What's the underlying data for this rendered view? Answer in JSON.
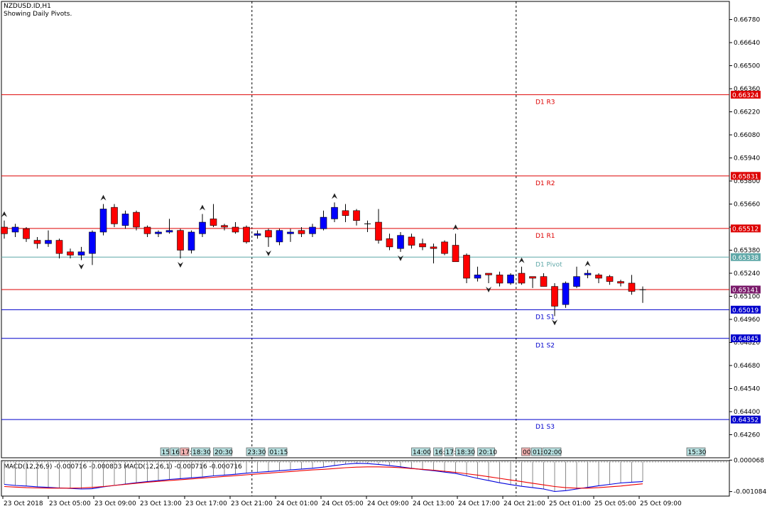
{
  "header": {
    "symbol": "NZDUSD.ID,H1",
    "subtitle": "Showing Daily Pivots."
  },
  "colors": {
    "bull": "#0000ff",
    "bear": "#ff0000",
    "resistance": "#dd0000",
    "support": "#0000cc",
    "pivot": "#5fa8a8",
    "macd_signal": "#ee0000",
    "macd_main": "#0000dd",
    "histogram": "#888888",
    "session_box": "#b7e0e0",
    "session_box_red": "#f4b3b3",
    "current_price": "#7a1a6a"
  },
  "chart_data": [
    {
      "type": "candlestick",
      "ylim": [
        0.6412,
        0.6689
      ],
      "y_ticks": [
        "0.66780",
        "0.66640",
        "0.66500",
        "0.66360",
        "0.66220",
        "0.66080",
        "0.65940",
        "0.65800",
        "0.65660",
        "0.65520",
        "0.65380",
        "0.65240",
        "0.65100",
        "0.64960",
        "0.64820",
        "0.64680",
        "0.64540",
        "0.64400",
        "0.64260"
      ],
      "x_labels": [
        "23 Oct 2018",
        "23 Oct 05:00",
        "23 Oct 09:00",
        "23 Oct 13:00",
        "23 Oct 17:00",
        "23 Oct 21:00",
        "24 Oct 01:00",
        "24 Oct 05:00",
        "24 Oct 09:00",
        "24 Oct 13:00",
        "24 Oct 17:00",
        "24 Oct 21:00",
        "25 Oct 01:00",
        "25 Oct 05:00",
        "25 Oct 09:00"
      ],
      "candles": [
        [
          0.6552,
          0.6548,
          0.6556,
          0.6545
        ],
        [
          0.6549,
          0.6552,
          0.6554,
          0.6546
        ],
        [
          0.6551,
          0.6545,
          0.6552,
          0.6543
        ],
        [
          0.6544,
          0.6542,
          0.6546,
          0.6539
        ],
        [
          0.6542,
          0.6544,
          0.655,
          0.654
        ],
        [
          0.6544,
          0.6536,
          0.6545,
          0.6533
        ],
        [
          0.6537,
          0.6535,
          0.6539,
          0.6533
        ],
        [
          0.6535,
          0.6537,
          0.654,
          0.6532
        ],
        [
          0.6536,
          0.6549,
          0.655,
          0.6529
        ],
        [
          0.6549,
          0.6563,
          0.6566,
          0.6547
        ],
        [
          0.6564,
          0.6554,
          0.6566,
          0.6552
        ],
        [
          0.6553,
          0.656,
          0.6562,
          0.6551
        ],
        [
          0.6561,
          0.6552,
          0.6562,
          0.655
        ],
        [
          0.6552,
          0.6548,
          0.6553,
          0.6546
        ],
        [
          0.6548,
          0.6549,
          0.655,
          0.6546
        ],
        [
          0.6549,
          0.655,
          0.6557,
          0.6548
        ],
        [
          0.655,
          0.6538,
          0.6551,
          0.6533
        ],
        [
          0.6538,
          0.6549,
          0.655,
          0.6536
        ],
        [
          0.6548,
          0.6555,
          0.656,
          0.6546
        ],
        [
          0.6557,
          0.6553,
          0.6566,
          0.6552
        ],
        [
          0.6553,
          0.6552,
          0.6554,
          0.655
        ],
        [
          0.6552,
          0.6549,
          0.6555,
          0.6548
        ],
        [
          0.6552,
          0.6543,
          0.6553,
          0.6542
        ],
        [
          0.6547,
          0.6548,
          0.655,
          0.6545
        ],
        [
          0.655,
          0.6546,
          0.6551,
          0.654
        ],
        [
          0.6543,
          0.655,
          0.6551,
          0.6541
        ],
        [
          0.6548,
          0.6549,
          0.6551,
          0.6543
        ],
        [
          0.655,
          0.6548,
          0.6552,
          0.6546
        ],
        [
          0.6548,
          0.6552,
          0.6554,
          0.6546
        ],
        [
          0.6551,
          0.6558,
          0.6562,
          0.655
        ],
        [
          0.6557,
          0.6564,
          0.6567,
          0.6555
        ],
        [
          0.6562,
          0.6559,
          0.6566,
          0.6555
        ],
        [
          0.6562,
          0.6556,
          0.6563,
          0.6553
        ],
        [
          0.6554,
          0.6554,
          0.6556,
          0.6549
        ],
        [
          0.6555,
          0.6544,
          0.6563,
          0.6542
        ],
        [
          0.6545,
          0.654,
          0.6548,
          0.6538
        ],
        [
          0.6539,
          0.6547,
          0.6549,
          0.6537
        ],
        [
          0.6546,
          0.6541,
          0.6548,
          0.6539
        ],
        [
          0.6542,
          0.654,
          0.6545,
          0.6538
        ],
        [
          0.654,
          0.6539,
          0.6542,
          0.653
        ],
        [
          0.6543,
          0.6536,
          0.6544,
          0.6535
        ],
        [
          0.6541,
          0.6531,
          0.6548,
          0.6531
        ],
        [
          0.6535,
          0.6521,
          0.6536,
          0.6518
        ],
        [
          0.6521,
          0.6523,
          0.6528,
          0.6519
        ],
        [
          0.6524,
          0.6523,
          0.6524,
          0.6518
        ],
        [
          0.6523,
          0.6518,
          0.6525,
          0.6516
        ],
        [
          0.6518,
          0.6523,
          0.6524,
          0.6517
        ],
        [
          0.6524,
          0.6518,
          0.6528,
          0.6517
        ],
        [
          0.6522,
          0.6521,
          0.6522,
          0.6515
        ],
        [
          0.6522,
          0.6516,
          0.6524,
          0.6516
        ],
        [
          0.6516,
          0.6504,
          0.6518,
          0.6498
        ],
        [
          0.6505,
          0.6518,
          0.6519,
          0.6503
        ],
        [
          0.6516,
          0.6522,
          0.6528,
          0.6515
        ],
        [
          0.6523,
          0.6524,
          0.6526,
          0.6521
        ],
        [
          0.6523,
          0.6521,
          0.6524,
          0.6518
        ],
        [
          0.6522,
          0.6519,
          0.6523,
          0.6517
        ],
        [
          0.6519,
          0.6518,
          0.652,
          0.6516
        ],
        [
          0.6518,
          0.6513,
          0.6523,
          0.6511
        ],
        [
          0.6514,
          0.6514,
          0.6516,
          0.6506
        ]
      ],
      "pivot_levels": [
        {
          "label": "D1 R3",
          "value": 0.66324,
          "value_label": "0.66324",
          "kind": "resistance"
        },
        {
          "label": "D1 R2",
          "value": 0.65831,
          "value_label": "0.65831",
          "kind": "resistance"
        },
        {
          "label": "D1 R1",
          "value": 0.65512,
          "value_label": "0.65512",
          "kind": "resistance"
        },
        {
          "label": "D1 Pivot",
          "value": 0.65338,
          "value_label": "0.65338",
          "kind": "pivot"
        },
        {
          "label": "",
          "value": 0.65141,
          "value_label": "0.65141",
          "kind": "current"
        },
        {
          "label": "D1 S1",
          "value": 0.65019,
          "value_label": "0.65019",
          "kind": "support"
        },
        {
          "label": "D1 S2",
          "value": 0.64845,
          "value_label": "0.64845",
          "kind": "support"
        },
        {
          "label": "D1 S3",
          "value": 0.64352,
          "value_label": "0.64352",
          "kind": "support"
        }
      ],
      "day_separators_at_candle": [
        22.5,
        46.5
      ],
      "fractals_up": [
        0,
        9,
        18,
        30,
        41,
        47,
        53
      ],
      "fractals_down": [
        7,
        16,
        24,
        36,
        44,
        50
      ]
    },
    {
      "type": "line",
      "title": "MACD(12,26,9) -0.000716 -0.000803 MACD(12,26,1) -0.000716 -0.000716",
      "ylim": [
        -0.00125,
        5e-05
      ],
      "y_ticks": [
        "0.000068",
        "-0.001084"
      ],
      "series": [
        {
          "name": "",
          "values": [
            -0.00082,
            -0.00086,
            -0.00088,
            -0.00091,
            -0.00093,
            -0.00095,
            -0.00097,
            -0.00099,
            -0.00098,
            -0.00091,
            -0.00086,
            -0.00081,
            -0.00076,
            -0.00072,
            -0.00068,
            -0.00064,
            -0.00061,
            -0.00058,
            -0.00055,
            -0.00051,
            -0.00048,
            -0.00045,
            -0.00041,
            -0.00038,
            -0.00035,
            -0.00032,
            -0.00029,
            -0.00026,
            -0.00023,
            -0.00019,
            -0.00013,
            -8e-05,
            -5e-05,
            -6e-05,
            -9e-05,
            -0.00013,
            -0.00018,
            -0.00023,
            -0.00028,
            -0.00032,
            -0.00037,
            -0.00042,
            -0.00051,
            -0.0006,
            -0.00068,
            -0.00076,
            -0.00083,
            -0.00089,
            -0.00094,
            -0.00099,
            -0.00108,
            -0.00105,
            -0.00099,
            -0.00093,
            -0.00087,
            -0.00082,
            -0.00077,
            -0.00074,
            -0.00072
          ]
        },
        {
          "name": "",
          "values": [
            -0.0009,
            -0.00092,
            -0.00094,
            -0.00095,
            -0.00096,
            -0.00096,
            -0.00096,
            -0.00095,
            -0.00093,
            -0.0009,
            -0.00086,
            -0.00082,
            -0.00078,
            -0.00074,
            -0.00071,
            -0.00068,
            -0.00065,
            -0.00062,
            -0.00059,
            -0.00056,
            -0.00053,
            -0.0005,
            -0.00047,
            -0.00044,
            -0.00041,
            -0.00038,
            -0.00035,
            -0.00032,
            -0.00029,
            -0.00027,
            -0.00024,
            -0.00021,
            -0.00019,
            -0.00018,
            -0.00018,
            -0.00019,
            -0.00021,
            -0.00024,
            -0.00027,
            -0.0003,
            -0.00034,
            -0.00038,
            -0.00043,
            -0.00048,
            -0.00054,
            -0.0006,
            -0.00066,
            -0.00072,
            -0.00078,
            -0.00084,
            -0.0009,
            -0.00094,
            -0.00096,
            -0.00096,
            -0.00094,
            -0.00091,
            -0.00088,
            -0.00084,
            -0.0008
          ]
        }
      ]
    }
  ],
  "session_boxes": [
    {
      "label": "15:",
      "at": 14.2,
      "w": 12,
      "red": false
    },
    {
      "label": "16:",
      "at": 15.1,
      "w": 12,
      "red": false
    },
    {
      "label": "17:",
      "at": 16.0,
      "w": 12,
      "red": true
    },
    {
      "label": "18:30",
      "at": 17.0,
      "w": 26,
      "red": false
    },
    {
      "label": "20:30",
      "at": 19.0,
      "w": 26,
      "red": false
    },
    {
      "label": "23:30",
      "at": 22.0,
      "w": 26,
      "red": false
    },
    {
      "label": "01:15",
      "at": 24.0,
      "w": 26,
      "red": false
    },
    {
      "label": "14:00",
      "at": 37.0,
      "w": 26,
      "red": false
    },
    {
      "label": "16:",
      "at": 39.0,
      "w": 12,
      "red": false
    },
    {
      "label": "17:",
      "at": 40.0,
      "w": 12,
      "red": false
    },
    {
      "label": "18:30",
      "at": 41.0,
      "w": 26,
      "red": false
    },
    {
      "label": "20:10",
      "at": 43.0,
      "w": 24,
      "red": false
    },
    {
      "label": "00:",
      "at": 47.0,
      "w": 12,
      "red": true
    },
    {
      "label": "01:",
      "at": 47.9,
      "w": 14,
      "red": false
    },
    {
      "label": "02:00",
      "at": 48.9,
      "w": 26,
      "red": false
    },
    {
      "label": "15:30",
      "at": 62.0,
      "w": 26,
      "red": false
    }
  ]
}
